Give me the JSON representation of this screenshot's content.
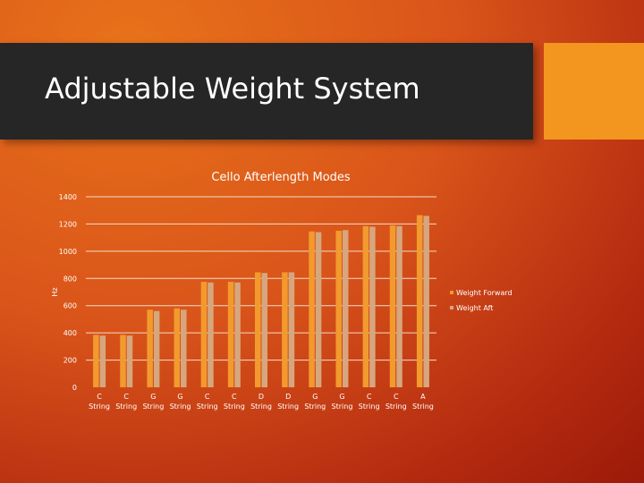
{
  "slide": {
    "title": "Adjustable Weight System",
    "colors": {
      "title_bar": "#262626",
      "accent_box": "#f3961f",
      "background": "#d9541a"
    }
  },
  "chart_data": {
    "type": "bar",
    "title": "Cello Afterlength Modes",
    "xlabel": "",
    "ylabel": "Hz",
    "ylim": [
      0,
      1400
    ],
    "yticks": [
      0,
      200,
      400,
      600,
      800,
      1000,
      1200,
      1400
    ],
    "grid": true,
    "legend_position": "right",
    "categories": [
      [
        "C",
        "String"
      ],
      [
        "C",
        "String"
      ],
      [
        "G",
        "String"
      ],
      [
        "G",
        "String"
      ],
      [
        "C",
        "String"
      ],
      [
        "C",
        "String"
      ],
      [
        "D",
        "String"
      ],
      [
        "D",
        "String"
      ],
      [
        "G",
        "String"
      ],
      [
        "G",
        "String"
      ],
      [
        "C",
        "String"
      ],
      [
        "C",
        "String"
      ],
      [
        "A",
        "String"
      ]
    ],
    "series": [
      {
        "name": "Weight Forward",
        "color": "#f29a2e",
        "values": [
          385,
          385,
          570,
          580,
          775,
          775,
          845,
          845,
          1145,
          1150,
          1185,
          1190,
          1265
        ]
      },
      {
        "name": "Weight Aft",
        "color": "#d6a77e",
        "values": [
          380,
          380,
          560,
          570,
          770,
          770,
          840,
          845,
          1140,
          1155,
          1180,
          1185,
          1260
        ]
      }
    ]
  }
}
